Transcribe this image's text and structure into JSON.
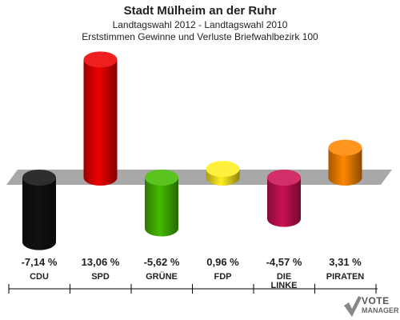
{
  "header": {
    "title": "Stadt Mülheim an der Ruhr",
    "subtitle": "Landtagswahl 2012 - Landtagswahl 2010",
    "description": "Erststimmen Gewinne und Verluste Briefwahlbezirk 100"
  },
  "chart_data": {
    "type": "bar",
    "categories": [
      "CDU",
      "SPD",
      "GRÜNE",
      "FDP",
      "DIE LINKE",
      "PIRATEN"
    ],
    "values": [
      -7.14,
      13.06,
      -5.62,
      0.96,
      -4.57,
      3.31
    ],
    "value_labels": [
      "-7,14 %",
      "13,06 %",
      "-5,62 %",
      "0,96 %",
      "-4,57 %",
      "3,31 %"
    ],
    "colors": [
      "#111111",
      "#ee0000",
      "#44bb00",
      "#ffee22",
      "#cc1155",
      "#ff8800"
    ],
    "unit": "%",
    "grid": false,
    "legend": "none"
  },
  "watermark": {
    "line1": "VOTE",
    "line2": "MANAGER"
  }
}
